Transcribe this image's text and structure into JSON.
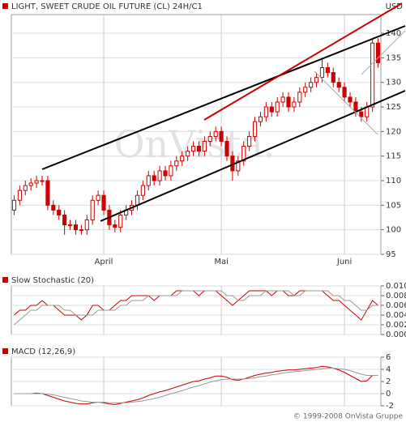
{
  "chart_data": [
    {
      "type": "candlestick",
      "title": "LIGHT, SWEET CRUDE OIL FUTURE (CL) 24H/C1",
      "unit": "USD",
      "watermark": "OnVista.",
      "color": "#cc0000",
      "categories": [
        null,
        null,
        null,
        null,
        null,
        null,
        null,
        null,
        null,
        null,
        null,
        null,
        null,
        null,
        null,
        null,
        "April",
        null,
        null,
        null,
        null,
        null,
        null,
        null,
        null,
        null,
        null,
        null,
        null,
        null,
        null,
        null,
        null,
        null,
        null,
        null,
        null,
        "Mai",
        null,
        null,
        null,
        null,
        null,
        null,
        null,
        null,
        null,
        null,
        null,
        null,
        null,
        null,
        null,
        null,
        null,
        null,
        null,
        null,
        null,
        "Juni",
        null,
        null,
        null,
        null,
        null,
        null
      ],
      "open": [
        104,
        106,
        108,
        109,
        109.5,
        110,
        110,
        105,
        104,
        103,
        101,
        101,
        100,
        100,
        102,
        106,
        107,
        104,
        101,
        100.5,
        103,
        104,
        105,
        107,
        109,
        111,
        110,
        112,
        111,
        113,
        114,
        115,
        116,
        117,
        116,
        118,
        119,
        120,
        118,
        115,
        112,
        114,
        117,
        119,
        122,
        123,
        125,
        124,
        126,
        127,
        125,
        126,
        128,
        129,
        130,
        131,
        133,
        132,
        130,
        129,
        127,
        126,
        124,
        123,
        125,
        138
      ],
      "high": [
        107,
        109,
        110,
        110.5,
        111,
        111,
        111,
        106,
        105,
        104,
        102,
        102,
        101,
        103,
        107,
        108,
        108,
        105,
        102,
        104,
        105,
        106,
        108,
        110,
        112,
        112,
        113,
        113,
        114,
        115,
        116,
        117,
        118,
        118,
        119,
        120,
        121,
        121,
        119,
        116,
        115,
        118,
        120,
        123,
        124,
        126,
        126,
        127,
        128,
        128,
        127,
        129,
        130,
        131,
        132,
        135,
        134,
        133,
        131,
        130,
        128,
        127,
        125,
        126,
        139,
        139
      ],
      "low": [
        103,
        105,
        107,
        108,
        108.5,
        109,
        104,
        103,
        102,
        99,
        100,
        99,
        99,
        99,
        101,
        105,
        103,
        100,
        99.5,
        99.5,
        102,
        103,
        104,
        106,
        108,
        109,
        109,
        110,
        110,
        112,
        113,
        114,
        115,
        115,
        115,
        117,
        118,
        117,
        114,
        110,
        111,
        113,
        116,
        118,
        121,
        122,
        123,
        123,
        125,
        124,
        124,
        125,
        127,
        128,
        129,
        130,
        131,
        129,
        128,
        126,
        125,
        123,
        122,
        122,
        124,
        133
      ],
      "close": [
        106,
        108,
        109,
        109.5,
        110,
        110,
        105,
        104,
        103,
        101,
        101,
        100,
        100,
        102,
        106,
        107,
        104,
        101,
        100.5,
        103,
        104,
        105,
        107,
        109,
        111,
        110,
        112,
        111,
        113,
        114,
        115,
        116,
        117,
        116,
        118,
        119,
        120,
        118,
        115,
        112,
        114,
        117,
        119,
        122,
        123,
        125,
        124,
        126,
        127,
        125,
        126,
        128,
        129,
        130,
        131,
        133,
        132,
        130,
        129,
        127,
        126,
        124,
        123,
        125,
        138,
        134
      ],
      "ylim": [
        95,
        143.8
      ],
      "yticks": [
        95,
        100,
        105,
        110,
        115,
        120,
        125,
        130,
        135,
        140
      ],
      "grid": true
    },
    {
      "type": "line",
      "title": "Slow Stochastic (20)",
      "series": [
        {
          "color": "#cc0000",
          "values": [
            0.004,
            0.005,
            0.005,
            0.006,
            0.006,
            0.007,
            0.006,
            0.006,
            0.005,
            0.004,
            0.004,
            0.004,
            0.003,
            0.004,
            0.006,
            0.006,
            0.005,
            0.005,
            0.006,
            0.007,
            0.007,
            0.008,
            0.008,
            0.008,
            0.008,
            0.007,
            0.008,
            0.008,
            0.008,
            0.009,
            0.009,
            0.009,
            0.009,
            0.008,
            0.009,
            0.009,
            0.009,
            0.008,
            0.007,
            0.006,
            0.007,
            0.008,
            0.009,
            0.009,
            0.009,
            0.009,
            0.008,
            0.009,
            0.009,
            0.008,
            0.008,
            0.009,
            0.009,
            0.009,
            0.009,
            0.009,
            0.008,
            0.007,
            0.007,
            0.006,
            0.005,
            0.004,
            0.003,
            0.005,
            0.007,
            0.006
          ]
        },
        {
          "color": "#999999",
          "values": [
            0.002,
            0.003,
            0.004,
            0.005,
            0.005,
            0.006,
            0.006,
            0.006,
            0.006,
            0.005,
            0.005,
            0.004,
            0.004,
            0.004,
            0.004,
            0.005,
            0.005,
            0.005,
            0.005,
            0.006,
            0.006,
            0.007,
            0.007,
            0.007,
            0.008,
            0.008,
            0.008,
            0.008,
            0.008,
            0.008,
            0.009,
            0.009,
            0.009,
            0.009,
            0.009,
            0.009,
            0.009,
            0.009,
            0.008,
            0.008,
            0.007,
            0.007,
            0.008,
            0.008,
            0.008,
            0.009,
            0.009,
            0.009,
            0.009,
            0.009,
            0.008,
            0.008,
            0.009,
            0.009,
            0.009,
            0.009,
            0.009,
            0.008,
            0.008,
            0.007,
            0.007,
            0.006,
            0.005,
            0.005,
            0.006,
            0.006
          ]
        }
      ],
      "ylim": [
        0,
        0.01
      ],
      "yticks": [
        {
          "value": 0,
          "label": "0.000"
        },
        {
          "value": 0.002,
          "label": "0.002"
        },
        {
          "value": 0.004,
          "label": "0.004"
        },
        {
          "value": 0.006,
          "label": "0.006"
        },
        {
          "value": 0.008,
          "label": "0.008"
        },
        {
          "value": 0.01,
          "label": "0.010"
        }
      ],
      "grid": true
    },
    {
      "type": "line",
      "title": "MACD (12,26,9)",
      "series": [
        {
          "color": "#cc0000",
          "values": [
            0,
            0,
            0,
            0,
            0.1,
            0,
            -0.3,
            -0.6,
            -0.9,
            -1.2,
            -1.4,
            -1.6,
            -1.7,
            -1.7,
            -1.5,
            -1.4,
            -1.5,
            -1.7,
            -1.8,
            -1.6,
            -1.4,
            -1.2,
            -1,
            -0.7,
            -0.3,
            0,
            0.3,
            0.5,
            0.8,
            1.1,
            1.4,
            1.7,
            2,
            2.1,
            2.4,
            2.6,
            2.9,
            2.9,
            2.7,
            2.3,
            2.2,
            2.4,
            2.7,
            3,
            3.2,
            3.4,
            3.5,
            3.7,
            3.8,
            3.9,
            3.9,
            4,
            4.1,
            4.2,
            4.3,
            4.5,
            4.4,
            4.2,
            3.9,
            3.5,
            3,
            2.5,
            2,
            2.1,
            3,
            3
          ]
        },
        {
          "color": "#999999",
          "values": [
            0,
            0,
            0,
            0,
            0,
            0,
            -0.1,
            -0.2,
            -0.4,
            -0.6,
            -0.8,
            -1,
            -1.2,
            -1.3,
            -1.4,
            -1.4,
            -1.4,
            -1.5,
            -1.5,
            -1.5,
            -1.5,
            -1.4,
            -1.3,
            -1.2,
            -1,
            -0.8,
            -0.6,
            -0.3,
            0,
            0.2,
            0.5,
            0.8,
            1.1,
            1.3,
            1.6,
            1.9,
            2.1,
            2.3,
            2.4,
            2.4,
            2.4,
            2.4,
            2.5,
            2.6,
            2.8,
            2.9,
            3.1,
            3.2,
            3.4,
            3.5,
            3.6,
            3.7,
            3.8,
            3.9,
            4,
            4.1,
            4.2,
            4.2,
            4.1,
            4,
            3.8,
            3.5,
            3.2,
            3,
            3,
            3
          ]
        }
      ],
      "ylim": [
        -2,
        6
      ],
      "yticks": [
        -2,
        0,
        2,
        4,
        6
      ],
      "grid": true
    }
  ],
  "footer": "© 1999-2008 OnVista Gruppe"
}
